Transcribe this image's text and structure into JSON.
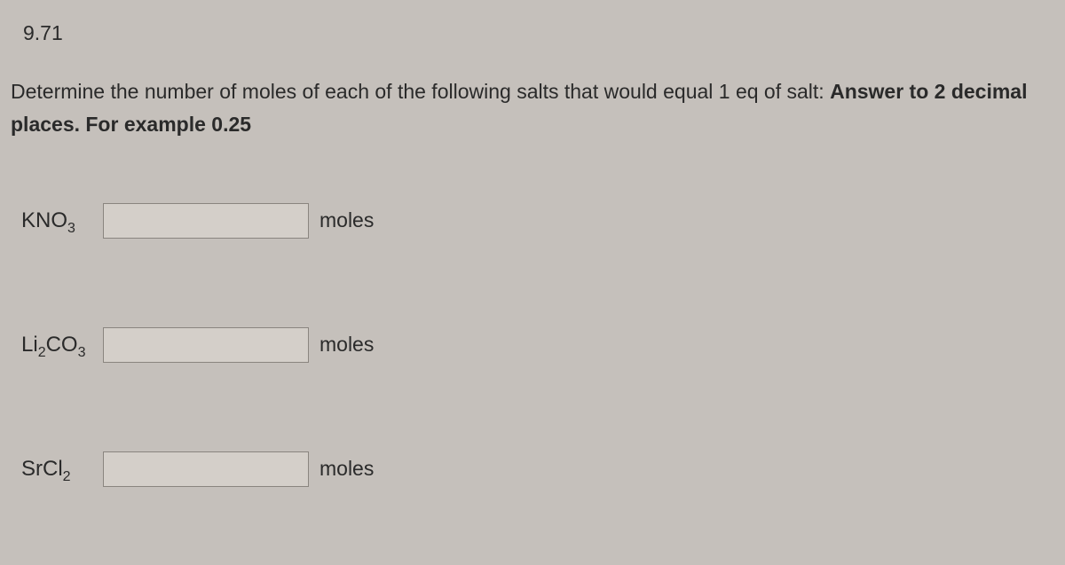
{
  "problem_number": "9.71",
  "prompt_plain": "Determine the number of moles of each of the following salts that would equal 1 eq of salt: ",
  "prompt_bold": "Answer to 2 decimal places. For example 0.25",
  "rows": [
    {
      "formula_base": "KNO",
      "formula_sub": "3",
      "value": "",
      "unit": "moles"
    },
    {
      "formula_pre": "Li",
      "formula_sub1": "2",
      "formula_mid": "CO",
      "formula_sub2": "3",
      "value": "",
      "unit": "moles"
    },
    {
      "formula_base": "SrCl",
      "formula_sub": "2",
      "value": "",
      "unit": "moles"
    }
  ],
  "colors": {
    "background": "#c5c0bb",
    "text": "#2a2a2a",
    "input_bg": "#d4cfc9",
    "input_border": "#8a857f"
  }
}
